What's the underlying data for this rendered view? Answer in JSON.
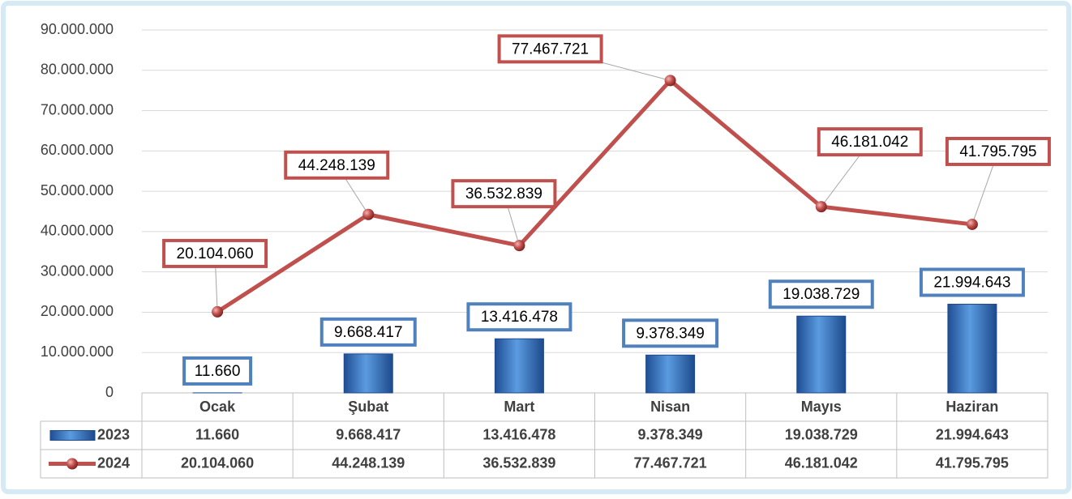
{
  "chart_data": {
    "type": "bar-line",
    "categories": [
      "Ocak",
      "Şubat",
      "Mart",
      "Nisan",
      "Mayıs",
      "Haziran"
    ],
    "series": [
      {
        "name": "2023",
        "type": "bar",
        "color": "#4f81bd",
        "values": [
          11660,
          9668417,
          13416478,
          9378349,
          19038729,
          21994643
        ],
        "value_labels": [
          "11.660",
          "9.668.417",
          "13.416.478",
          "9.378.349",
          "19.038.729",
          "21.994.643"
        ]
      },
      {
        "name": "2024",
        "type": "line",
        "color": "#c0504d",
        "values": [
          20104060,
          44248139,
          36532839,
          77467721,
          46181042,
          41795795
        ],
        "value_labels": [
          "20.104.060",
          "44.248.139",
          "36.532.839",
          "77.467.721",
          "46.181.042",
          "41.795.795"
        ]
      }
    ],
    "ylim": [
      0,
      90000000
    ],
    "yticks": [
      0,
      {
        "value": 10000000,
        "label": "10.000.000"
      },
      {
        "value": 20000000,
        "label": "20.000.000"
      },
      {
        "value": 30000000,
        "label": "30.000.000"
      },
      {
        "value": 40000000,
        "label": "40.000.000"
      },
      {
        "value": 50000000,
        "label": "50.000.000"
      },
      {
        "value": 60000000,
        "label": "60.000.000"
      },
      {
        "value": 70000000,
        "label": "70.000.000"
      },
      {
        "value": 80000000,
        "label": "80.000.000"
      },
      {
        "value": 90000000,
        "label": "90.000.000"
      }
    ],
    "grid": true,
    "data_table": true
  }
}
